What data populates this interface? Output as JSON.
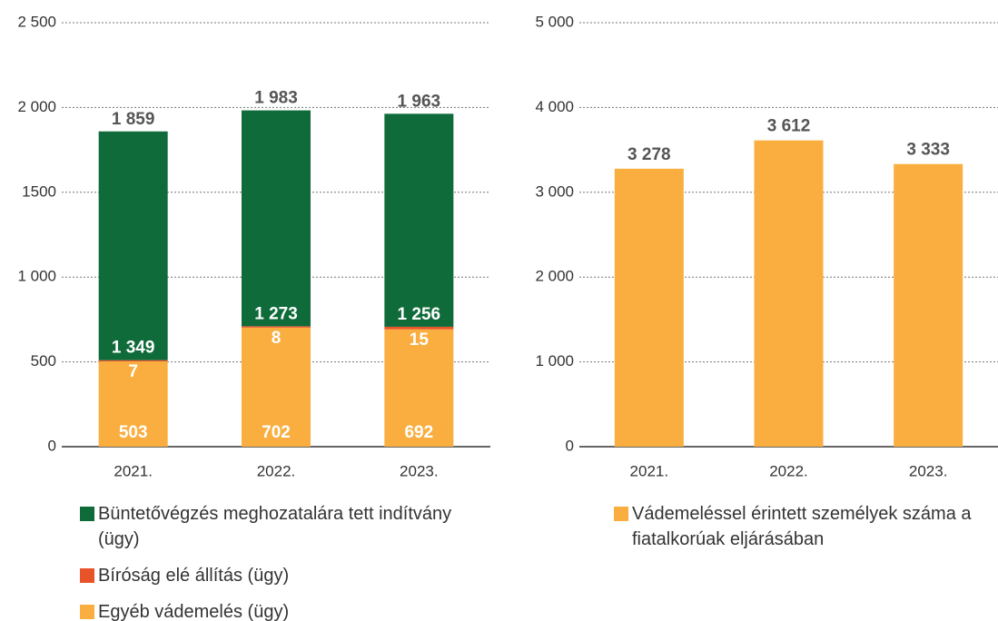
{
  "chart_data": [
    {
      "type": "stacked_bar",
      "categories": [
        "2021.",
        "2022.",
        "2023."
      ],
      "ylim": [
        0,
        2500
      ],
      "yticks": [
        0,
        500,
        {
          "value": 1000,
          "label": "1 000"
        },
        1500,
        {
          "value": 2000,
          "label": "2 000"
        },
        {
          "value": 2500,
          "label": "2 500"
        }
      ],
      "grid": true,
      "series": [
        {
          "name": "Egyéb vádemelés (ügy)",
          "color": "#f9ae3f",
          "values": [
            503,
            702,
            692
          ]
        },
        {
          "name": "Bíróság elé állítás (ügy)",
          "color": "#e8542a",
          "values": [
            7,
            8,
            15
          ]
        },
        {
          "name": "Büntetővégzés meghozatalára tett indítvány (ügy)",
          "color": "#0f6b3a",
          "values": [
            1349,
            1273,
            1256
          ],
          "value_labels": [
            "1 349",
            "1 273",
            "1 256"
          ]
        }
      ],
      "totals": {
        "values": [
          1859,
          1983,
          1963
        ],
        "value_labels": [
          "1 859",
          "1 983",
          "1 963"
        ]
      }
    },
    {
      "type": "bar",
      "categories": [
        "2021.",
        "2022.",
        "2023."
      ],
      "ylim": [
        0,
        5000
      ],
      "yticks": [
        0,
        {
          "value": 1000,
          "label": "1 000"
        },
        {
          "value": 2000,
          "label": "2 000"
        },
        {
          "value": 3000,
          "label": "3 000"
        },
        {
          "value": 4000,
          "label": "4 000"
        },
        {
          "value": 5000,
          "label": "5 000"
        }
      ],
      "grid": true,
      "series": [
        {
          "name": "Vádemeléssel érintett személyek száma a fiatalkorúak eljárásában",
          "color": "#f9ae3f",
          "values": [
            3278,
            3612,
            3333
          ],
          "value_labels": [
            "3 278",
            "3 612",
            "3 333"
          ]
        }
      ]
    }
  ]
}
